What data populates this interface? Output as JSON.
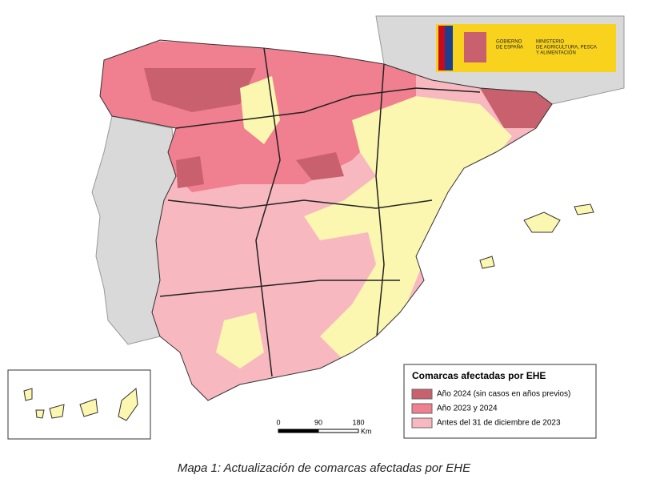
{
  "logo": {
    "gobierno": [
      "GOBIERNO",
      "DE ESPAÑA"
    ],
    "ministerio": [
      "MINISTERIO",
      "DE AGRICULTURA, PESCA",
      "Y ALIMENTACIÓN"
    ]
  },
  "legend": {
    "title": "Comarcas afectadas por EHE",
    "items": [
      {
        "label": "Año 2024 (sin casos en años previos)",
        "color": "#c9606e"
      },
      {
        "label": "Año 2023 y 2024",
        "color": "#f07f8f"
      },
      {
        "label": "Antes del 31 de diciembre de 2023",
        "color": "#f7b8c0"
      }
    ]
  },
  "scale": {
    "ticks": [
      0,
      90,
      180
    ],
    "unit": "Km"
  },
  "caption": "Mapa 1: Actualización de comarcas afectadas por EHE"
}
